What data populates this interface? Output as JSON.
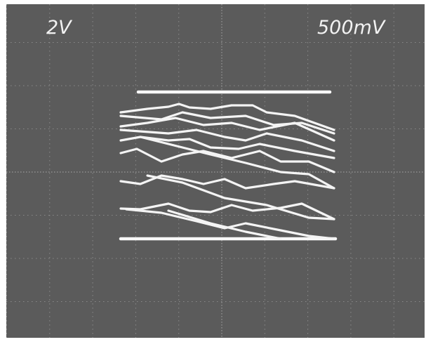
{
  "screen": {
    "left_label": "2V",
    "right_label": "500mV"
  }
}
